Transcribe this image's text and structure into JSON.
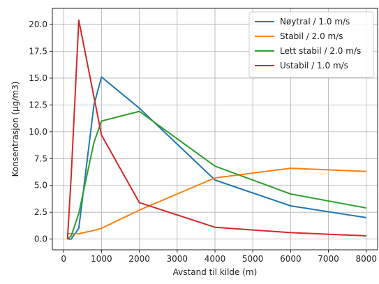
{
  "chart_data": {
    "type": "line",
    "xlabel": "Avstand til kilde (m)",
    "ylabel": "Konsentrasjon (µg/m3)",
    "xlim": [
      -300,
      8300
    ],
    "ylim": [
      -1.0,
      21.5
    ],
    "xticks": [
      0,
      1000,
      2000,
      3000,
      4000,
      5000,
      6000,
      7000,
      8000
    ],
    "yticks": [
      0.0,
      2.5,
      5.0,
      7.5,
      10.0,
      12.5,
      15.0,
      17.5,
      20.0
    ],
    "xtick_labels": [
      "0",
      "1000",
      "2000",
      "3000",
      "4000",
      "5000",
      "6000",
      "7000",
      "8000"
    ],
    "ytick_labels": [
      "0.0",
      "2.5",
      "5.0",
      "7.5",
      "10.0",
      "12.5",
      "15.0",
      "17.5",
      "20.0"
    ],
    "grid": true,
    "legend_position": "top-right",
    "series": [
      {
        "name": "Nøytral / 1.0 m/s",
        "color": "#1f77b4",
        "x": [
          100,
          200,
          400,
          800,
          1000,
          2000,
          4000,
          6000,
          8000
        ],
        "y": [
          0.0,
          0.0,
          1.0,
          12.5,
          15.1,
          12.2,
          5.5,
          3.1,
          2.0
        ]
      },
      {
        "name": "Stabil / 2.0 m/s",
        "color": "#ff7f0e",
        "x": [
          100,
          400,
          800,
          1000,
          2000,
          4000,
          6000,
          8000
        ],
        "y": [
          0.5,
          0.5,
          0.8,
          1.0,
          2.7,
          5.7,
          6.6,
          6.3
        ]
      },
      {
        "name": "Lett stabil / 2.0 m/s",
        "color": "#2ca02c",
        "x": [
          100,
          200,
          400,
          800,
          1000,
          2000,
          4000,
          6000,
          8000
        ],
        "y": [
          0.0,
          0.3,
          2.4,
          9.0,
          11.0,
          11.9,
          6.8,
          4.2,
          2.9
        ]
      },
      {
        "name": "Ustabil / 1.0 m/s",
        "color": "#d62728",
        "x": [
          100,
          200,
          400,
          1000,
          2000,
          4000,
          6000,
          8000
        ],
        "y": [
          0.0,
          6.0,
          20.4,
          9.7,
          3.4,
          1.1,
          0.6,
          0.3
        ]
      }
    ]
  }
}
